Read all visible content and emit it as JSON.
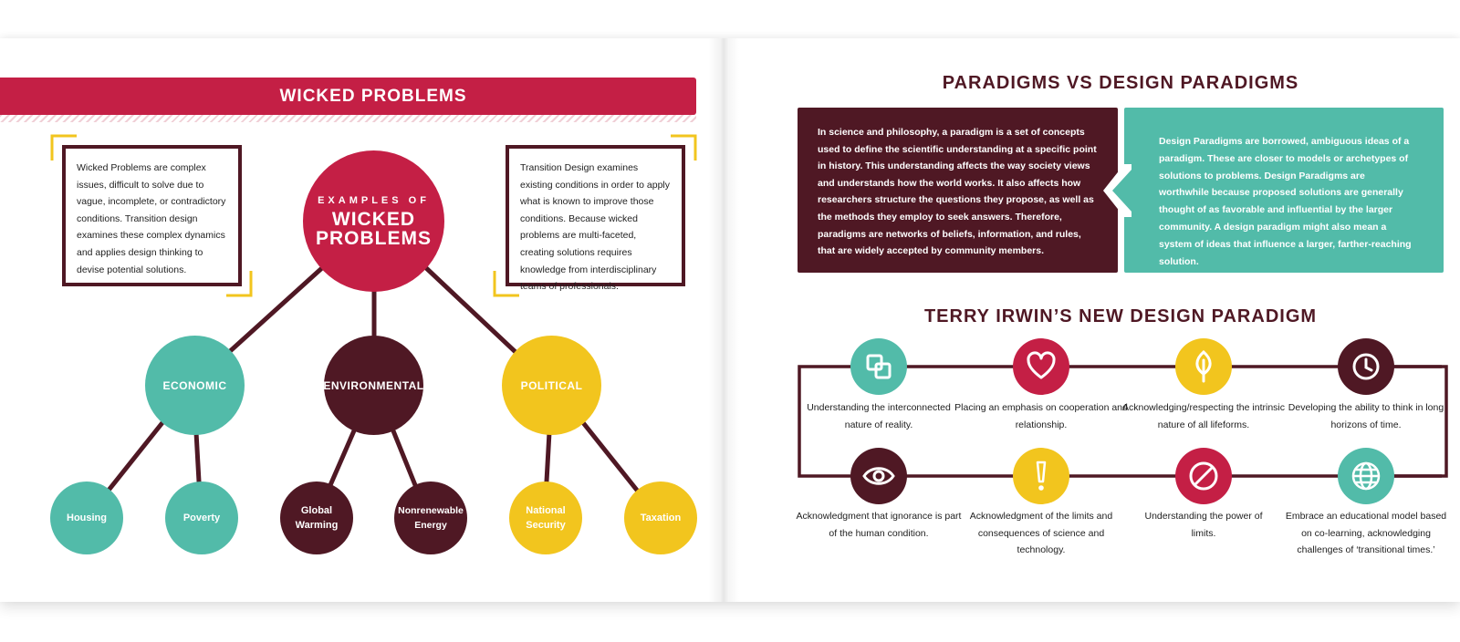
{
  "left_page": {
    "banner_title": "WICKED PROBLEMS",
    "left_text": "Wicked Problems are complex issues, difficult to solve due to vague, incomplete, or contradictory conditions. Transition design examines these complex dynamics and applies design thinking to devise potential solutions.",
    "right_text": "Transition Design examines existing conditions in order to apply what is known to improve those conditions. Because wicked problems are multi-faceted, creating solutions requires knowledge from interdisciplinary teams of professionals.",
    "center": {
      "small": "EXAMPLES OF",
      "big_1": "WICKED",
      "big_2": "PROBLEMS"
    },
    "categories": [
      {
        "label": "ECONOMIC",
        "children": [
          "Housing",
          "Poverty"
        ]
      },
      {
        "label": "ENVIRONMENTAL",
        "children": [
          "Global Warming",
          "Nonrenewable Energy"
        ]
      },
      {
        "label": "POLITICAL",
        "children": [
          "National Security",
          "Taxation"
        ]
      }
    ]
  },
  "right_page": {
    "title": "PARADIGMS VS DESIGN PARADIGMS",
    "paradigm_text": "In science and philosophy, a paradigm is a set of concepts used to define the scientific understanding at a specific point in history. This understanding affects the way society views and understands how the world works. It also affects how researchers structure the questions they propose, as well as the methods they employ to seek answers. Therefore, paradigms are networks of beliefs, information, and rules, that are widely accepted by community members.",
    "design_paradigm_text": "Design Paradigms are borrowed, ambiguous ideas of a paradigm. These are closer to models or archetypes of solutions to problems. Design Paradigms are worthwhile because proposed solutions are generally thought of as favorable and influential by the larger community. A design paradigm might also mean a system of ideas that influence a larger, farther-reaching solution.",
    "subtitle": "TERRY IRWIN’S NEW DESIGN PARADIGM",
    "items": [
      {
        "icon": "interlocking-squares-icon",
        "color": "#52bba9",
        "caption": "Understanding the interconnected nature of reality."
      },
      {
        "icon": "heart-icon",
        "color": "#c41f45",
        "caption": "Placing an emphasis on cooperation and relationship."
      },
      {
        "icon": "leaf-icon",
        "color": "#f2c51e",
        "caption": "Acknowledging/respecting the intrinsic nature of all lifeforms."
      },
      {
        "icon": "clock-icon",
        "color": "#4f1824",
        "caption": "Developing the ability to think in long horizons of time."
      },
      {
        "icon": "eye-icon",
        "color": "#4f1824",
        "caption": "Acknowledgment that ignorance is part of the human condition."
      },
      {
        "icon": "exclamation-icon",
        "color": "#f2c51e",
        "caption": "Acknowledgment of the limits and consequences of science and technology."
      },
      {
        "icon": "prohibited-icon",
        "color": "#c41f45",
        "caption": "Understanding the power of limits."
      },
      {
        "icon": "globe-icon",
        "color": "#52bba9",
        "caption": "Embrace an educational model based on co-learning, acknowledging challenges of ‘transitional times.’"
      }
    ]
  },
  "colors": {
    "crimson": "#c41f45",
    "maroon": "#4f1824",
    "teal": "#52bba9",
    "yellow": "#f2c51e"
  }
}
